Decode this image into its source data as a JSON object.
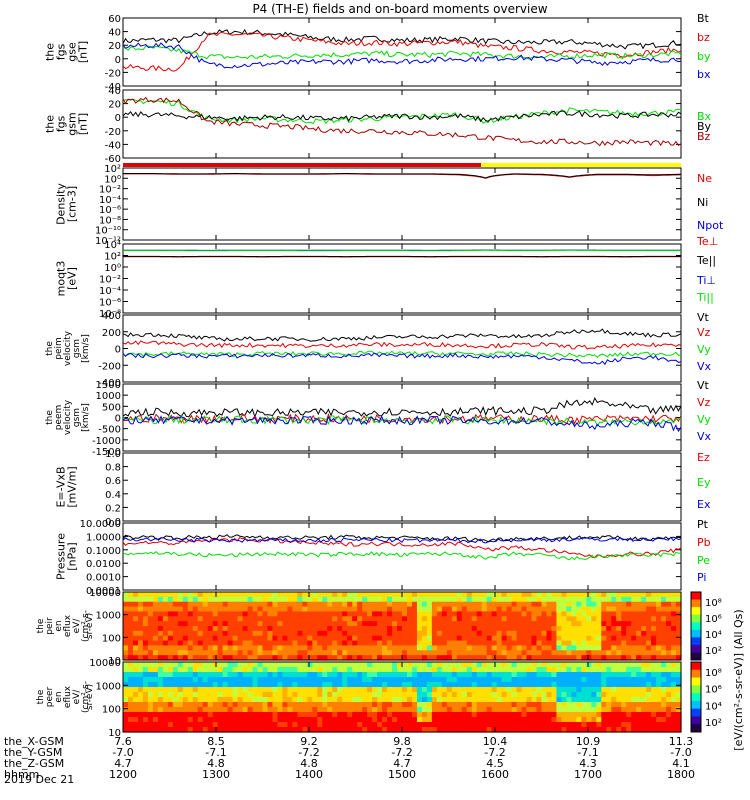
{
  "title": "P4 (TH-E) fields and on-board moments overview",
  "date_label": "2019 Dec 21",
  "colors": {
    "black": "#000000",
    "red": "#e00000",
    "green": "#00dd00",
    "blue": "#0000dd",
    "dark_red": "#a00000",
    "yellow": "#ffff00"
  },
  "chart_data": [
    {
      "type": "line",
      "panel": "fgs-gse",
      "ylabel": [
        "the",
        "fgs",
        "gse",
        "[nT]"
      ],
      "ylim": [
        -40,
        60
      ],
      "yticks": [
        "60",
        "40",
        "20",
        "0",
        "-20",
        "-40"
      ],
      "series": [
        {
          "name": "Bt",
          "color": "#000000",
          "values": [
            26,
            28,
            27,
            38,
            40,
            38,
            35,
            30,
            28,
            30,
            27,
            28,
            30,
            26,
            24,
            24,
            25,
            22,
            18,
            20,
            24
          ]
        },
        {
          "name": "bz",
          "color": "#e00000",
          "values": [
            -12,
            -14,
            -15,
            34,
            36,
            34,
            30,
            26,
            22,
            24,
            22,
            24,
            25,
            18,
            16,
            12,
            10,
            8,
            6,
            10,
            14
          ]
        },
        {
          "name": "by",
          "color": "#00dd00",
          "values": [
            14,
            16,
            12,
            4,
            2,
            3,
            4,
            6,
            6,
            8,
            6,
            6,
            8,
            6,
            4,
            2,
            4,
            6,
            4,
            6,
            8
          ]
        },
        {
          "name": "bx",
          "color": "#0000dd",
          "values": [
            18,
            20,
            18,
            -8,
            -10,
            -8,
            -6,
            -4,
            -4,
            -2,
            -4,
            -2,
            0,
            0,
            2,
            0,
            -2,
            -6,
            -4,
            -2,
            0
          ]
        }
      ]
    },
    {
      "type": "line",
      "panel": "fgs-gsm",
      "ylabel": [
        "the",
        "fgs",
        "gsm",
        "[nT]"
      ],
      "ylim": [
        -60,
        40
      ],
      "yticks": [
        "40",
        "20",
        "0",
        "-20",
        "-40",
        "-60"
      ],
      "series": [
        {
          "name": "Bx",
          "color": "#00dd00",
          "values": [
            22,
            24,
            20,
            -2,
            -4,
            -2,
            -4,
            -6,
            -4,
            -2,
            0,
            2,
            4,
            -6,
            0,
            6,
            10,
            8,
            6,
            6,
            8
          ]
        },
        {
          "name": "By",
          "color": "#000000",
          "values": [
            4,
            4,
            2,
            0,
            -2,
            0,
            0,
            -2,
            -2,
            0,
            2,
            0,
            2,
            -4,
            0,
            4,
            6,
            4,
            2,
            4,
            4
          ]
        },
        {
          "name": "Bz",
          "color": "#a00000",
          "values": [
            24,
            26,
            24,
            -6,
            -10,
            -12,
            -14,
            -18,
            -20,
            -20,
            -22,
            -24,
            -26,
            -30,
            -34,
            -36,
            -36,
            -38,
            -36,
            -38,
            -40
          ]
        }
      ]
    },
    {
      "type": "line",
      "panel": "density",
      "ylabel": [
        "Density",
        "[cm-3]"
      ],
      "yscale": "log",
      "ylim": [
        1e-14,
        100
      ],
      "yticks": [
        "10²",
        "10⁰",
        "10⁻²",
        "10⁻⁴",
        "10⁻⁶",
        "10⁻⁸",
        "10⁻¹⁰",
        "10⁻¹²"
      ],
      "series": [
        {
          "name": "Ne",
          "color": "#e00000",
          "values": [
            5,
            5,
            4,
            4,
            5,
            4,
            4,
            4,
            5,
            4,
            4,
            4,
            3,
            0.5,
            4,
            3,
            0.8,
            3,
            3,
            2,
            3
          ]
        },
        {
          "name": "Ni",
          "color": "#000000",
          "values": [
            6,
            6,
            5,
            5,
            6,
            5,
            5,
            5,
            6,
            5,
            5,
            5,
            4,
            0.6,
            5,
            4,
            1.0,
            4,
            4,
            3,
            4
          ]
        },
        {
          "name": "Npot",
          "color": "#0000dd",
          "values": []
        }
      ]
    },
    {
      "type": "line",
      "panel": "temperature",
      "ylabel": [
        "moqt3",
        "[eV]"
      ],
      "yscale": "log",
      "ylim": [
        1e-08,
        10000
      ],
      "yticks": [
        "10⁴",
        "10²",
        "10⁰",
        "10⁻²",
        "10⁻⁴",
        "10⁻⁶",
        "10⁻⁸"
      ],
      "series": [
        {
          "name": "Te⊥",
          "color": "#e00000",
          "values": [
            60,
            60,
            55,
            60,
            60,
            55,
            60,
            60,
            55,
            60,
            60,
            55,
            60,
            60,
            60,
            55,
            60,
            60,
            55,
            60,
            60
          ]
        },
        {
          "name": "Te||",
          "color": "#000000",
          "values": [
            70,
            70,
            65,
            70,
            70,
            65,
            70,
            70,
            65,
            70,
            70,
            65,
            70,
            70,
            70,
            65,
            70,
            70,
            65,
            70,
            70
          ]
        },
        {
          "name": "Ti⊥",
          "color": "#0000dd",
          "values": [
            800,
            820,
            800,
            780,
            800,
            820,
            800,
            790,
            800,
            820,
            800,
            780,
            800,
            900,
            800,
            820,
            900,
            850,
            800,
            820,
            800
          ]
        },
        {
          "name": "Ti||",
          "color": "#00dd00",
          "values": [
            700,
            710,
            700,
            690,
            700,
            710,
            700,
            690,
            700,
            710,
            700,
            690,
            700,
            800,
            700,
            710,
            800,
            750,
            700,
            710,
            700
          ]
        }
      ]
    },
    {
      "type": "line",
      "panel": "peim-velocity",
      "ylabel": [
        "the",
        "peim",
        "velocity",
        "gsm",
        "[km/s]"
      ],
      "ylim": [
        -400,
        400
      ],
      "yticks": [
        "400",
        "200",
        "0",
        "-200",
        "-400"
      ],
      "series": [
        {
          "name": "Vt",
          "color": "#000000",
          "values": [
            160,
            170,
            150,
            120,
            110,
            120,
            115,
            110,
            120,
            130,
            140,
            140,
            150,
            160,
            140,
            150,
            200,
            220,
            180,
            160,
            170
          ]
        },
        {
          "name": "Vz",
          "color": "#e00000",
          "values": [
            60,
            70,
            50,
            40,
            40,
            40,
            35,
            30,
            40,
            50,
            40,
            50,
            40,
            30,
            40,
            50,
            20,
            10,
            30,
            40,
            50
          ]
        },
        {
          "name": "Vy",
          "color": "#00dd00",
          "values": [
            -60,
            -70,
            -60,
            -70,
            -70,
            -60,
            -65,
            -60,
            -60,
            -55,
            -60,
            -60,
            -60,
            -70,
            -60,
            -70,
            -80,
            -90,
            -70,
            -60,
            -60
          ]
        },
        {
          "name": "Vx",
          "color": "#0000dd",
          "values": [
            -80,
            -90,
            -80,
            -90,
            -90,
            -80,
            -85,
            -80,
            -90,
            -80,
            -90,
            -90,
            -80,
            -100,
            -90,
            -100,
            -140,
            -180,
            -120,
            -100,
            -180
          ]
        }
      ]
    },
    {
      "type": "line",
      "panel": "peem-velocity",
      "ylabel": [
        "the",
        "peem",
        "velocity",
        "gsm",
        "[km/s]"
      ],
      "ylim": [
        -1500,
        1500
      ],
      "yticks": [
        "1500",
        "1000",
        "500",
        "0",
        "-500",
        "-1000",
        "-1500"
      ],
      "series": [
        {
          "name": "Vt",
          "color": "#000000",
          "values": [
            200,
            250,
            200,
            220,
            230,
            200,
            210,
            220,
            230,
            250,
            260,
            250,
            250,
            300,
            280,
            300,
            600,
            700,
            500,
            300,
            400
          ]
        },
        {
          "name": "Vz",
          "color": "#e00000",
          "values": [
            -50,
            -40,
            -60,
            -50,
            -40,
            -60,
            -50,
            -40,
            -60,
            -50,
            -40,
            -60,
            -50,
            -40,
            -60,
            -50,
            -100,
            -80,
            -60,
            -50,
            -40
          ]
        },
        {
          "name": "Vy",
          "color": "#00dd00",
          "values": [
            -100,
            -120,
            -100,
            -110,
            -120,
            -100,
            -110,
            -120,
            -100,
            -110,
            -120,
            -100,
            -110,
            -150,
            -120,
            -130,
            -200,
            -250,
            -180,
            -150,
            -200
          ]
        },
        {
          "name": "Vx",
          "color": "#0000dd",
          "values": [
            -120,
            -140,
            -120,
            -130,
            -140,
            -120,
            -130,
            -140,
            -120,
            -130,
            -140,
            -120,
            -130,
            -170,
            -140,
            -150,
            -300,
            -400,
            -250,
            -200,
            -500
          ]
        }
      ]
    },
    {
      "type": "line",
      "panel": "efield",
      "ylabel": [
        "E=-VxB",
        "[mV/m]"
      ],
      "ylim": [
        0.0,
        1.0
      ],
      "yticks": [
        "1.0",
        "0.8",
        "0.6",
        "0.4",
        "0.2",
        "0.0"
      ],
      "series": [
        {
          "name": "Ez",
          "color": "#e00000",
          "values": []
        },
        {
          "name": "Ey",
          "color": "#00dd00",
          "values": []
        },
        {
          "name": "Ex",
          "color": "#0000dd",
          "values": []
        }
      ]
    },
    {
      "type": "line",
      "panel": "pressure",
      "ylabel": [
        "Pressure",
        "[nPa]"
      ],
      "yscale": "log",
      "ylim": [
        0.0001,
        10
      ],
      "yticks": [
        "10.0000",
        "1.0000",
        "0.1000",
        "0.0100",
        "0.0010",
        "0.0001"
      ],
      "series": [
        {
          "name": "Pt",
          "color": "#000000",
          "values": [
            0.9,
            0.9,
            0.8,
            0.9,
            1.0,
            0.9,
            0.8,
            0.8,
            0.9,
            0.8,
            0.8,
            0.7,
            0.7,
            0.5,
            0.7,
            0.7,
            0.8,
            0.9,
            0.7,
            0.7,
            0.8
          ]
        },
        {
          "name": "Pb",
          "color": "#e00000",
          "values": [
            0.3,
            0.35,
            0.3,
            0.5,
            0.6,
            0.5,
            0.4,
            0.3,
            0.25,
            0.3,
            0.25,
            0.25,
            0.3,
            0.1,
            0.15,
            0.1,
            0.05,
            0.03,
            0.05,
            0.05,
            0.1
          ]
        },
        {
          "name": "Pe",
          "color": "#00dd00",
          "values": [
            0.05,
            0.06,
            0.05,
            0.04,
            0.04,
            0.05,
            0.05,
            0.04,
            0.05,
            0.05,
            0.04,
            0.05,
            0.05,
            0.02,
            0.05,
            0.04,
            0.02,
            0.03,
            0.04,
            0.04,
            0.05
          ]
        },
        {
          "name": "Pi",
          "color": "#0000dd",
          "values": [
            0.6,
            0.6,
            0.55,
            0.5,
            0.5,
            0.5,
            0.5,
            0.5,
            0.55,
            0.55,
            0.5,
            0.5,
            0.5,
            0.45,
            0.55,
            0.55,
            0.6,
            0.6,
            0.6,
            0.6,
            0.65
          ]
        }
      ]
    },
    {
      "type": "heatmap",
      "panel": "peir-eflux",
      "ylabel": [
        "the",
        "peir",
        "en",
        "eflux",
        "eV/",
        "(cm²-s-",
        "sr-eV)"
      ],
      "yscale": "log",
      "ylim": [
        7,
        20000
      ],
      "yticks": [
        "10000",
        "1000",
        "100",
        "10"
      ],
      "colorbar_label": "[eV/(cm²-s-sr-eV)] (All Qs)",
      "colorbar_ticks": [
        "10⁸",
        "10⁶",
        "10⁴",
        "10²"
      ]
    },
    {
      "type": "heatmap",
      "panel": "peer-eflux",
      "ylabel": [
        "the",
        "peer",
        "en",
        "eflux",
        "eV/",
        "(cm²-s-",
        "sr-eV)"
      ],
      "yscale": "log",
      "ylim": [
        7,
        20000
      ],
      "yticks": [
        "10000",
        "1000",
        "100",
        "10"
      ],
      "colorbar_label": "[eV/(cm²-s-sr-eV)] (All Qs)",
      "colorbar_ticks": [
        "10⁸",
        "10⁶",
        "10⁴",
        "10²"
      ]
    }
  ],
  "xaxis": {
    "rows": [
      {
        "label": "the_X-GSM",
        "values": [
          "7.6",
          "8.5",
          "9.2",
          "9.8",
          "10.4",
          "10.9",
          "11.3"
        ]
      },
      {
        "label": "the_Y-GSM",
        "values": [
          "-7.0",
          "-7.1",
          "-7.2",
          "-7.2",
          "-7.2",
          "-7.1",
          "-7.0"
        ]
      },
      {
        "label": "the_Z-GSM",
        "values": [
          "4.7",
          "4.8",
          "4.8",
          "4.7",
          "4.5",
          "4.3",
          "4.1"
        ]
      },
      {
        "label": "hhmm",
        "values": [
          "1200",
          "1300",
          "1400",
          "1500",
          "1600",
          "1700",
          "1800"
        ]
      }
    ]
  }
}
